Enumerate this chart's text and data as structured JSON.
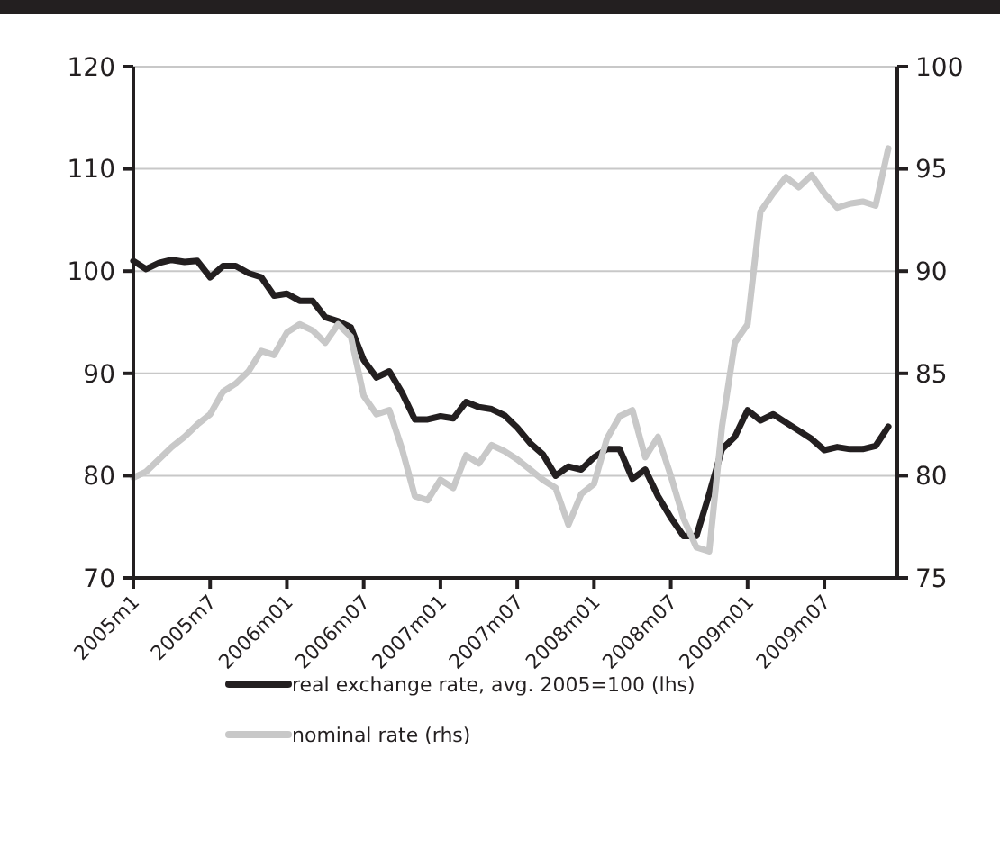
{
  "chart_data": {
    "type": "line",
    "categories": [
      "2005m1",
      null,
      null,
      null,
      null,
      null,
      "2005m7",
      null,
      null,
      null,
      null,
      null,
      "2006m01",
      null,
      null,
      null,
      null,
      null,
      "2006m07",
      null,
      null,
      null,
      null,
      null,
      "2007m01",
      null,
      null,
      null,
      null,
      null,
      "2007m07",
      null,
      null,
      null,
      null,
      null,
      "2008m01",
      null,
      null,
      null,
      null,
      null,
      "2008m07",
      null,
      null,
      null,
      null,
      null,
      "2009m01",
      null,
      null,
      null,
      null,
      null,
      "2009m07",
      null,
      null,
      null,
      null,
      null
    ],
    "series": [
      {
        "name": "real exchange rate, avg. 2005=100 (lhs)",
        "color": "#231f20",
        "values": [
          101.0,
          100.2,
          100.8,
          101.1,
          100.9,
          101.0,
          99.4,
          100.5,
          100.5,
          99.8,
          99.4,
          97.6,
          97.8,
          97.1,
          97.1,
          95.5,
          95.1,
          94.5,
          91.3,
          89.6,
          90.2,
          88.1,
          85.5,
          85.5,
          85.8,
          85.6,
          87.2,
          86.7,
          86.5,
          85.9,
          84.7,
          83.2,
          82.1,
          80.0,
          80.9,
          80.6,
          81.8,
          82.6,
          82.6,
          79.7,
          80.6,
          78.0,
          75.9,
          74.1,
          74.1,
          78.2,
          82.6,
          83.8,
          86.4,
          85.4,
          86.0,
          85.2,
          84.4,
          83.6,
          82.5,
          82.8,
          82.6,
          82.6,
          82.9,
          84.8
        ]
      },
      {
        "name": "nominal rate (rhs)",
        "color": "#c8c8c8",
        "axis": "y2",
        "values": [
          79.9,
          80.2,
          80.8,
          81.4,
          81.9,
          82.5,
          83.0,
          84.1,
          84.5,
          85.1,
          86.1,
          85.9,
          87.0,
          87.4,
          87.1,
          86.5,
          87.4,
          86.8,
          83.9,
          83.0,
          83.2,
          81.3,
          79.0,
          78.8,
          79.8,
          79.4,
          81.0,
          80.6,
          81.5,
          81.2,
          80.8,
          80.3,
          79.8,
          79.4,
          77.6,
          79.1,
          79.6,
          81.8,
          82.9,
          83.2,
          80.9,
          81.9,
          80.0,
          77.9,
          76.5,
          76.3,
          82.4,
          86.5,
          87.4,
          92.9,
          93.8,
          94.6,
          94.1,
          94.7,
          93.8,
          93.1,
          93.3,
          93.4,
          93.2,
          96.0
        ]
      }
    ],
    "ylim": [
      70,
      120
    ],
    "yticks": [
      70,
      80,
      90,
      100,
      110,
      120
    ],
    "y2lim": [
      75,
      100
    ],
    "y2ticks": [
      75,
      80,
      85,
      90,
      95,
      100
    ],
    "grid": "y",
    "legend": "bottom",
    "marker": "none",
    "line_style": "solid"
  }
}
